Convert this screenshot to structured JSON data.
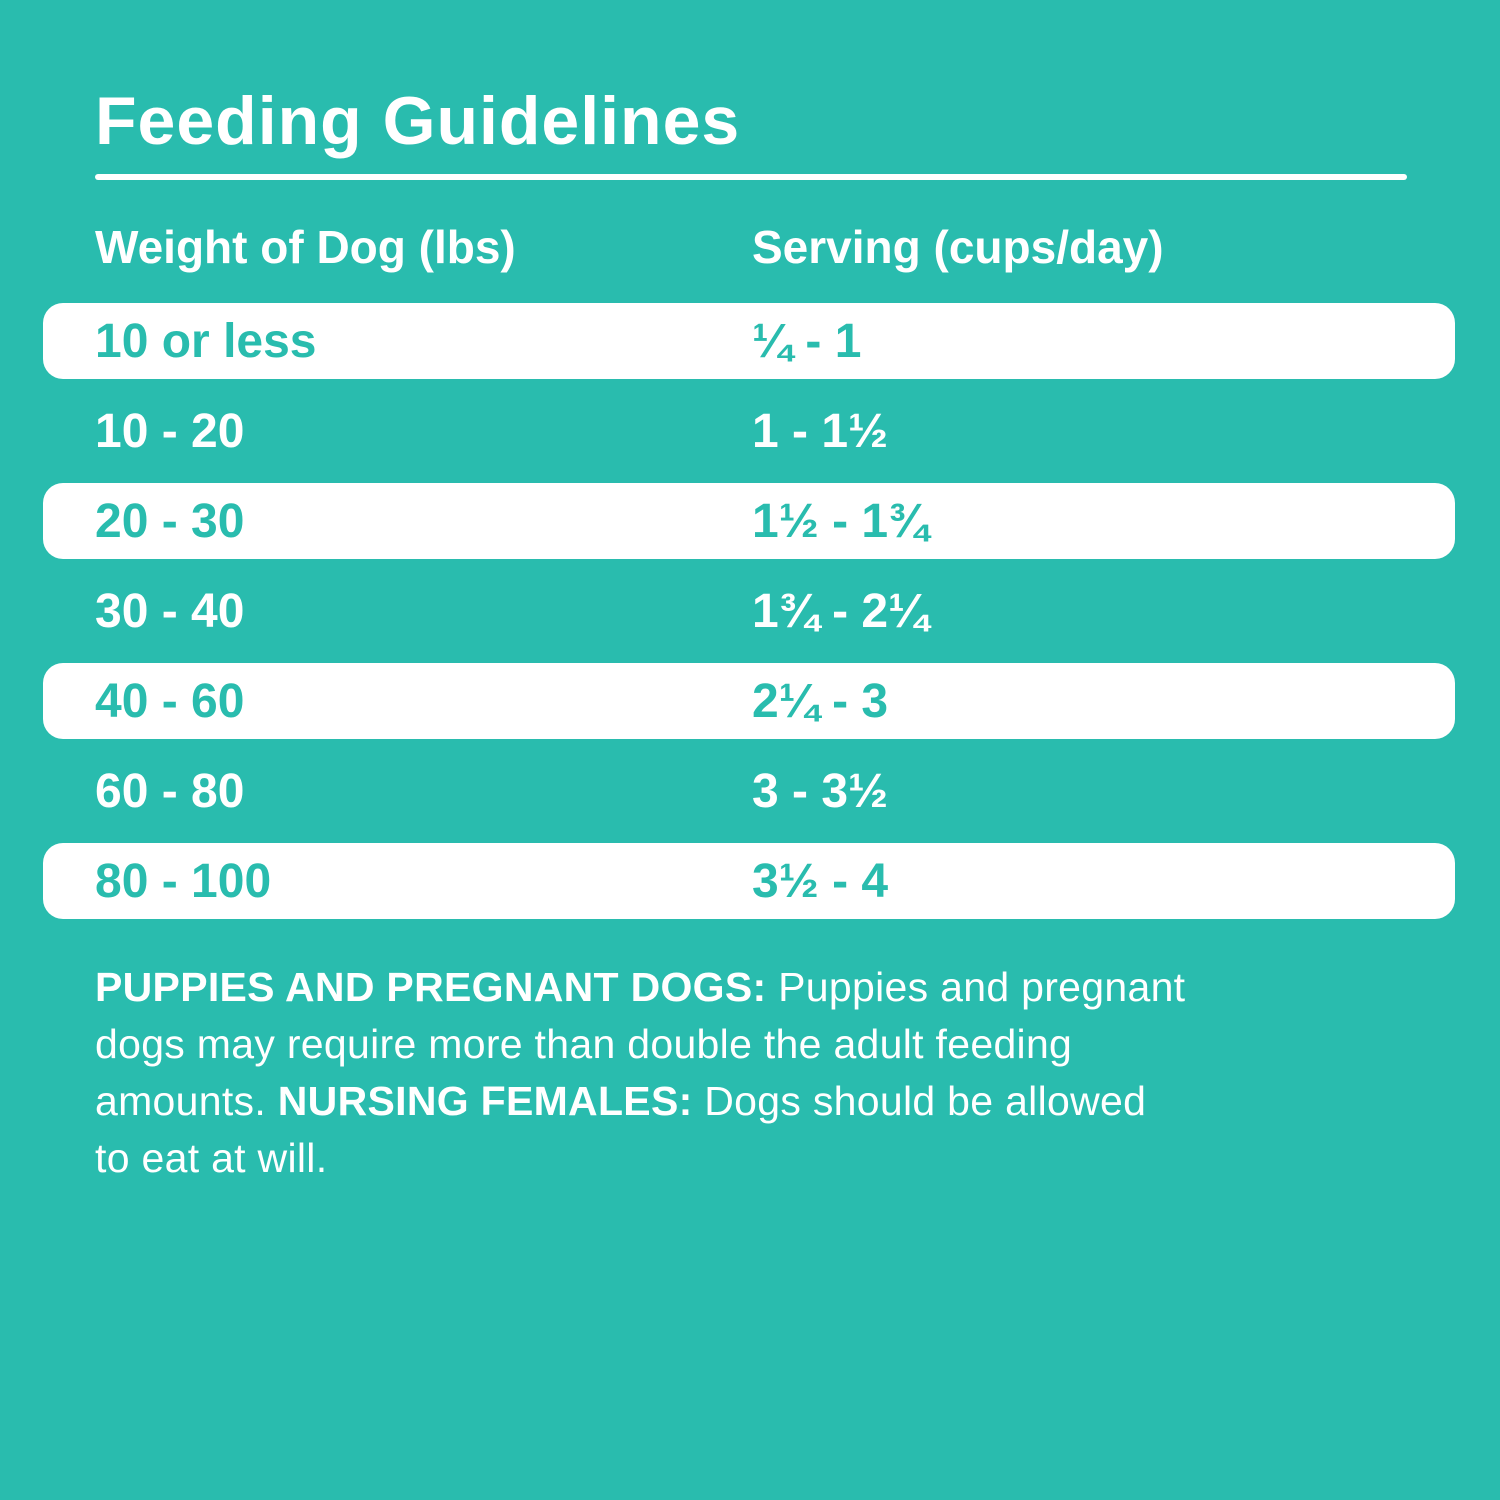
{
  "colors": {
    "background": "#29BCAE",
    "row_highlight": "#FFFFFF",
    "text_on_teal": "#FFFFFF",
    "text_on_white": "#29BCAE"
  },
  "title": "Feeding Guidelines",
  "table": {
    "columns": [
      "Weight of Dog (lbs)",
      "Serving (cups/day)"
    ],
    "rows": [
      {
        "weight": "10 or less",
        "serving": "¼ - 1"
      },
      {
        "weight": "10 - 20",
        "serving": "1 - 1½"
      },
      {
        "weight": "20 - 30",
        "serving": "1½ - 1¾"
      },
      {
        "weight": "30 - 40",
        "serving": "1¾ - 2¼"
      },
      {
        "weight": "40 - 60",
        "serving": "2¼ - 3"
      },
      {
        "weight": "60 - 80",
        "serving": "3 - 3½"
      },
      {
        "weight": "80 - 100",
        "serving": "3½ - 4"
      }
    ]
  },
  "footnote": {
    "lines": [
      [
        {
          "text": "PUPPIES AND PREGNANT DOGS:",
          "bold": true
        },
        {
          "text": " Puppies and pregnant",
          "bold": false
        }
      ],
      [
        {
          "text": "dogs may require more than double the adult feeding",
          "bold": false
        }
      ],
      [
        {
          "text": "amounts. ",
          "bold": false
        },
        {
          "text": "NURSING FEMALES:",
          "bold": true
        },
        {
          "text": " Dogs should be allowed",
          "bold": false
        }
      ],
      [
        {
          "text": "to eat at will.",
          "bold": false
        }
      ]
    ],
    "full_text": "PUPPIES AND PREGNANT DOGS: Puppies and pregnant dogs may require more than double the adult feeding amounts. NURSING FEMALES: Dogs should be allowed to eat at will."
  },
  "chart_data": {
    "type": "table",
    "title": "Feeding Guidelines",
    "columns": [
      "Weight of Dog (lbs)",
      "Serving (cups/day)"
    ],
    "rows": [
      [
        "10 or less",
        "¼ - 1"
      ],
      [
        "10 - 20",
        "1 - 1½"
      ],
      [
        "20 - 30",
        "1½ - 1¾"
      ],
      [
        "30 - 40",
        "1¾ - 2¼"
      ],
      [
        "40 - 60",
        "2¼ - 3"
      ],
      [
        "60 - 80",
        "3 - 3½"
      ],
      [
        "80 - 100",
        "3½ - 4"
      ]
    ],
    "note": "PUPPIES AND PREGNANT DOGS: Puppies and pregnant dogs may require more than double the adult feeding amounts. NURSING FEMALES: Dogs should be allowed to eat at will."
  }
}
